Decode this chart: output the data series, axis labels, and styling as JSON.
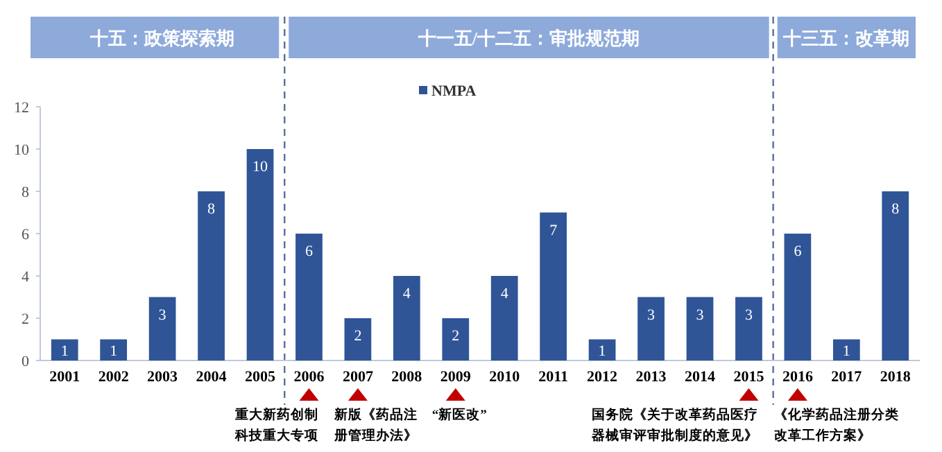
{
  "chart_data": {
    "type": "bar",
    "categories": [
      "2001",
      "2002",
      "2003",
      "2004",
      "2005",
      "2006",
      "2007",
      "2008",
      "2009",
      "2010",
      "2011",
      "2012",
      "2013",
      "2014",
      "2015",
      "2016",
      "2017",
      "2018"
    ],
    "series": [
      {
        "name": "NMPA",
        "color": "#2f5597",
        "values": [
          1,
          1,
          3,
          8,
          10,
          6,
          2,
          4,
          2,
          4,
          7,
          1,
          3,
          3,
          3,
          6,
          1,
          8
        ]
      }
    ],
    "data_labels": true,
    "ylim": [
      0,
      12
    ],
    "yticks": [
      0,
      2,
      4,
      6,
      8,
      10,
      12
    ],
    "legend": "top",
    "grid": false,
    "annotations": [
      "十五：政策探索期",
      "十一五/十二五：审批规范期",
      "十三五：改革期",
      "重大新药创制科技重大专项",
      "新版《药品注册管理办法》",
      "“新医改”",
      "国务院《关于改革药品医疗器械审评审批制度的意见》",
      "《化学药品注册分类改革工作方案》"
    ]
  }
}
